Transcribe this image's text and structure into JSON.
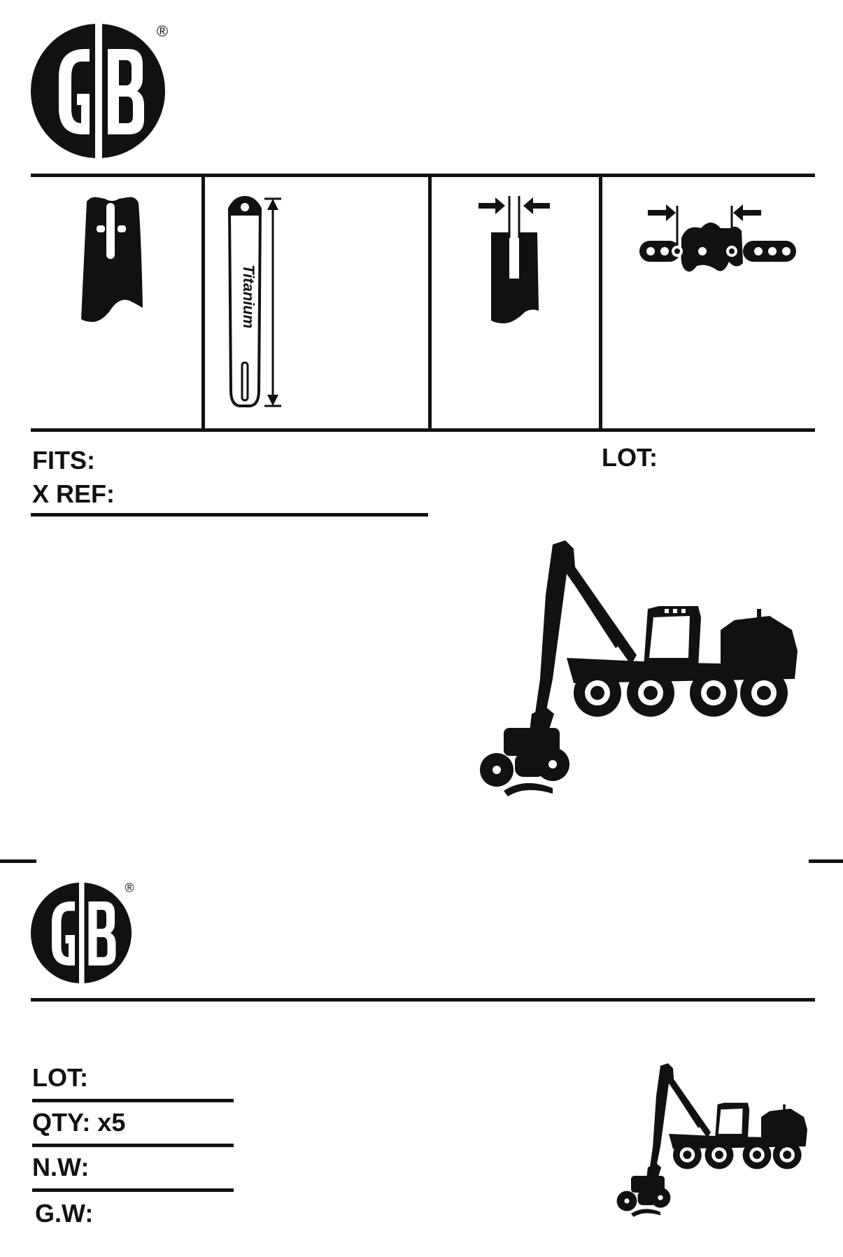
{
  "brand": {
    "logo_text": "GB",
    "registered_mark": "®"
  },
  "top_label": {
    "fits_label": "FITS:",
    "xref_label": "X REF:",
    "lot_label": "LOT:",
    "bar_text": "Titanium",
    "icons": [
      "bar-nose-icon",
      "bar-length-icon",
      "groove-gauge-icon",
      "chain-pitch-icon",
      "harvester-icon"
    ]
  },
  "bottom_label": {
    "lot_label": "LOT:",
    "qty_label": "QTY: x5",
    "nw_label": "N.W:",
    "gw_label": "G.W:",
    "icons": [
      "harvester-icon"
    ]
  },
  "colors": {
    "ink": "#111111",
    "paper": "#ffffff"
  }
}
